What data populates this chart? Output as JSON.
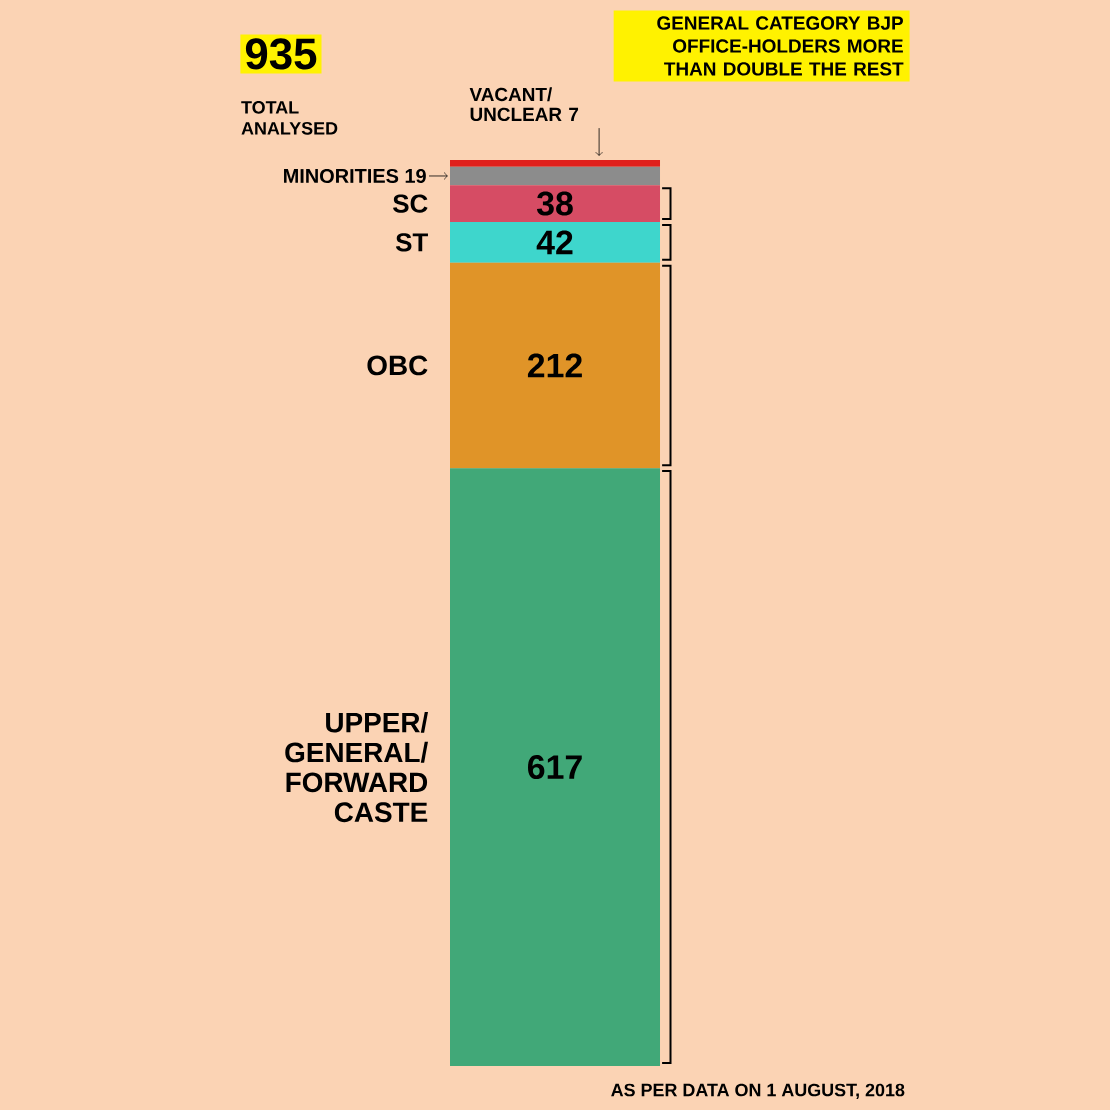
{
  "chart_data": {
    "type": "bar",
    "title": "GENERAL CATEGORY BJP OFFICE-HOLDERS MORE THAN DOUBLE THE REST",
    "annotations": [
      "935",
      "TOTAL ANALYSED",
      "AS PER DATA ON 1 AUGUST, 2018"
    ],
    "categories": [
      null
    ],
    "stacked": true,
    "data_labels": true,
    "series": [
      {
        "name": "UPPER/ GENERAL/ FORWARD CASTE",
        "color": "#41a878",
        "values": [
          617
        ]
      },
      {
        "name": "OBC",
        "color": "#e09428",
        "values": [
          212
        ]
      },
      {
        "name": "ST",
        "color": "#3ed6cc",
        "values": [
          42
        ]
      },
      {
        "name": "SC",
        "color": "#d64c64",
        "values": [
          38
        ]
      },
      {
        "name": "MINORITIES",
        "color": "#8c8c8c",
        "values": [
          19
        ]
      },
      {
        "name": "VACANT/ UNCLEAR",
        "color": "#e0201c",
        "values": [
          7
        ]
      }
    ]
  }
}
